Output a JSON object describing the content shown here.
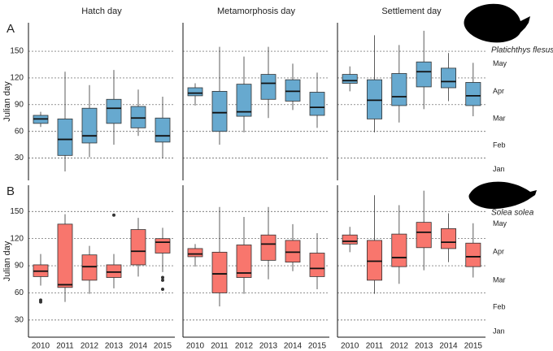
{
  "chart_data": [
    {
      "type": "box",
      "title": "Hatch day",
      "panel_label": "A",
      "ylabel": "Julian day",
      "color": "#67a9cf",
      "ylim": [
        5,
        182
      ],
      "yticks": [
        30,
        60,
        90,
        120,
        150
      ],
      "grid": true,
      "boxes": [
        {
          "min": 65,
          "q1": 69,
          "median": 74,
          "q3": 78,
          "max": 82
        },
        {
          "min": 15,
          "q1": 33,
          "median": 51,
          "q3": 74,
          "max": 127
        },
        {
          "min": 31,
          "q1": 47,
          "median": 55,
          "q3": 86,
          "max": 112
        },
        {
          "min": 45,
          "q1": 69,
          "median": 86,
          "q3": 96,
          "max": 129
        },
        {
          "min": 55,
          "q1": 64,
          "median": 75,
          "q3": 88,
          "max": 107
        },
        {
          "min": 30,
          "q1": 48,
          "median": 55,
          "q3": 75,
          "max": 99
        }
      ]
    },
    {
      "type": "box",
      "title": "Metamorphosis day",
      "color": "#67a9cf",
      "ylim": [
        5,
        182
      ],
      "yticks": [
        30,
        60,
        90,
        120,
        150
      ],
      "grid": true,
      "boxes": [
        {
          "min": 89,
          "q1": 100,
          "median": 103,
          "q3": 109,
          "max": 114
        },
        {
          "min": 45,
          "q1": 60,
          "median": 81,
          "q3": 105,
          "max": 155
        },
        {
          "min": 59,
          "q1": 77,
          "median": 82,
          "q3": 113,
          "max": 144
        },
        {
          "min": 75,
          "q1": 96,
          "median": 114,
          "q3": 124,
          "max": 155
        },
        {
          "min": 84,
          "q1": 94,
          "median": 105,
          "q3": 118,
          "max": 136
        },
        {
          "min": 64,
          "q1": 78,
          "median": 87,
          "q3": 104,
          "max": 126
        }
      ]
    },
    {
      "type": "box",
      "title": "Settlement day",
      "species": "Platichthys flesus",
      "color": "#67a9cf",
      "ylim": [
        5,
        182
      ],
      "yticks": [
        30,
        60,
        90,
        120,
        150
      ],
      "grid": true,
      "y2lim": [
        5,
        182
      ],
      "y2ticks": [
        {
          "value": 136,
          "label": "May"
        },
        {
          "value": 105,
          "label": "Apr"
        },
        {
          "value": 74,
          "label": "Mar"
        },
        {
          "value": 44,
          "label": "Feb"
        },
        {
          "value": 17,
          "label": "Jan"
        }
      ],
      "boxes": [
        {
          "min": 105,
          "q1": 114,
          "median": 117,
          "q3": 124,
          "max": 133
        },
        {
          "min": 59,
          "q1": 74,
          "median": 95,
          "q3": 118,
          "max": 168
        },
        {
          "min": 70,
          "q1": 89,
          "median": 99,
          "q3": 125,
          "max": 157
        },
        {
          "min": 85,
          "q1": 110,
          "median": 127,
          "q3": 138,
          "max": 173
        },
        {
          "min": 94,
          "q1": 109,
          "median": 116,
          "q3": 131,
          "max": 148
        },
        {
          "min": 77,
          "q1": 89,
          "median": 100,
          "q3": 115,
          "max": 137
        }
      ]
    },
    {
      "type": "box",
      "panel_label": "B",
      "ylabel": "Julian day",
      "color": "#f8766d",
      "ylim": [
        11,
        179
      ],
      "yticks": [
        30,
        60,
        90,
        120,
        150
      ],
      "grid": true,
      "categories": [
        "2010",
        "2011",
        "2012",
        "2013",
        "2014",
        "2015"
      ],
      "boxes": [
        {
          "min": 68,
          "q1": 78,
          "median": 84,
          "q3": 91,
          "max": 103,
          "outliers": [
            52,
            50
          ]
        },
        {
          "min": 50,
          "q1": 66,
          "median": 69,
          "q3": 136,
          "max": 147
        },
        {
          "min": 59,
          "q1": 74,
          "median": 89,
          "q3": 102,
          "max": 112
        },
        {
          "min": 65,
          "q1": 77,
          "median": 83,
          "q3": 91,
          "max": 103,
          "outliers": [
            146
          ]
        },
        {
          "min": 78,
          "q1": 91,
          "median": 106,
          "q3": 130,
          "max": 143
        },
        {
          "min": 83,
          "q1": 104,
          "median": 116,
          "q3": 120,
          "max": 132,
          "outliers": [
            77,
            74,
            64
          ]
        }
      ]
    },
    {
      "type": "box",
      "color": "#f8766d",
      "ylim": [
        11,
        179
      ],
      "yticks": [
        30,
        60,
        90,
        120,
        150
      ],
      "grid": true,
      "categories": [
        "2010",
        "2011",
        "2012",
        "2013",
        "2014",
        "2015"
      ],
      "boxes": [
        {
          "min": 89,
          "q1": 100,
          "median": 103,
          "q3": 109,
          "max": 114
        },
        {
          "min": 45,
          "q1": 60,
          "median": 81,
          "q3": 105,
          "max": 155
        },
        {
          "min": 59,
          "q1": 77,
          "median": 82,
          "q3": 113,
          "max": 144
        },
        {
          "min": 75,
          "q1": 96,
          "median": 114,
          "q3": 124,
          "max": 155
        },
        {
          "min": 84,
          "q1": 94,
          "median": 105,
          "q3": 118,
          "max": 136
        },
        {
          "min": 64,
          "q1": 78,
          "median": 87,
          "q3": 104,
          "max": 126
        }
      ]
    },
    {
      "type": "box",
      "species": "Solea solea",
      "color": "#f8766d",
      "ylim": [
        11,
        179
      ],
      "yticks": [
        30,
        60,
        90,
        120,
        150
      ],
      "grid": true,
      "y2lim": [
        11,
        179
      ],
      "y2ticks": [
        {
          "value": 136,
          "label": "May"
        },
        {
          "value": 105,
          "label": "Apr"
        },
        {
          "value": 74,
          "label": "Mar"
        },
        {
          "value": 44,
          "label": "Feb"
        },
        {
          "value": 17,
          "label": "Jan"
        }
      ],
      "categories": [
        "2010",
        "2011",
        "2012",
        "2013",
        "2014",
        "2015"
      ],
      "boxes": [
        {
          "min": 105,
          "q1": 114,
          "median": 117,
          "q3": 124,
          "max": 133
        },
        {
          "min": 59,
          "q1": 74,
          "median": 95,
          "q3": 118,
          "max": 168
        },
        {
          "min": 70,
          "q1": 89,
          "median": 99,
          "q3": 125,
          "max": 157
        },
        {
          "min": 85,
          "q1": 110,
          "median": 127,
          "q3": 138,
          "max": 173
        },
        {
          "min": 94,
          "q1": 109,
          "median": 116,
          "q3": 131,
          "max": 148
        },
        {
          "min": 77,
          "q1": 89,
          "median": 100,
          "q3": 115,
          "max": 137
        }
      ]
    }
  ]
}
